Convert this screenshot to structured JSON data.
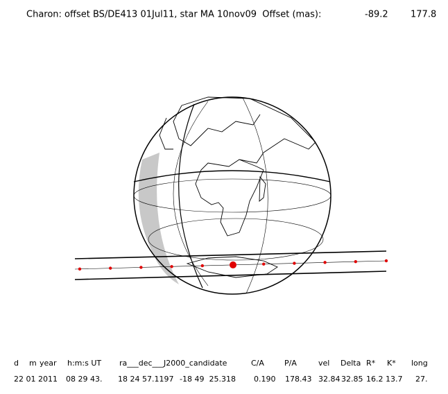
{
  "title": "Charon: offset BS/DE413 01Jul11, star MA 10nov09  Offset (mas):",
  "offset": [
    "-89.2",
    "177.8"
  ],
  "table": {
    "header": [
      "d",
      "m",
      "year",
      "h:m:s UT",
      "ra___dec___J2000_candidate",
      "C/A",
      "P/A",
      "vel",
      "Delta",
      "R*",
      "K*",
      "long"
    ],
    "row": [
      "22 01 2011",
      "08 29 43.",
      "18 24 57.1197",
      "-18 49  25.318",
      "0.190",
      "178.43",
      "32.84",
      "32.85",
      "16.2",
      "13.7",
      "27."
    ]
  }
}
